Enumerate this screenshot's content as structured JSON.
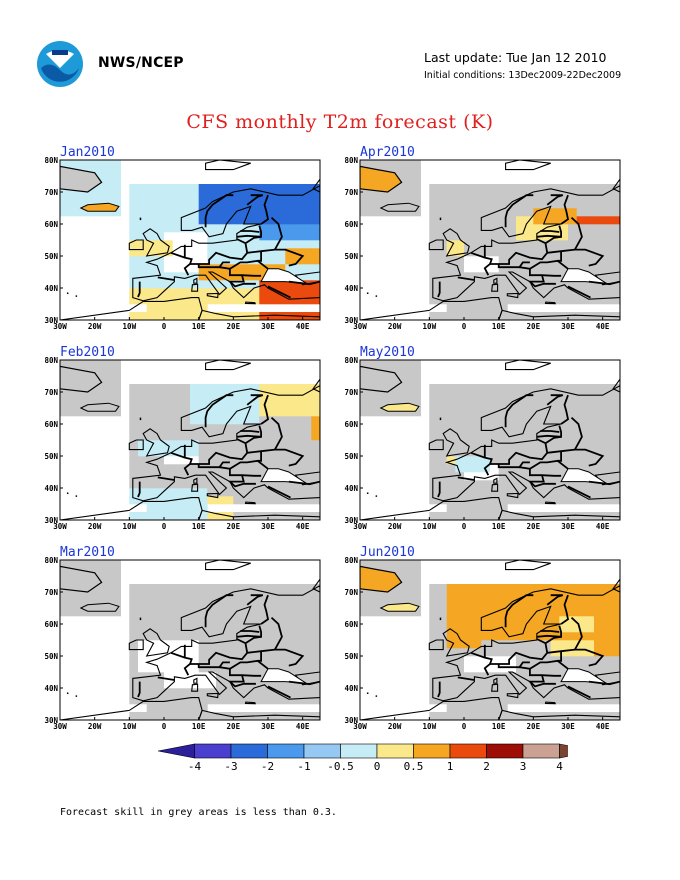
{
  "header": {
    "org": "NWS/NCEP",
    "last_update": "Last update: Tue Jan 12 2010",
    "initial_conditions": "Initial conditions: 13Dec2009-22Dec2009",
    "logo": "noaa-logo"
  },
  "title": "CFS monthly T2m forecast (K)",
  "map": {
    "region": "Europe",
    "lon_range": [
      -30,
      45
    ],
    "lat_range": [
      30,
      80
    ],
    "lon_ticks": [
      "30W",
      "20W",
      "10W",
      "0",
      "10E",
      "20E",
      "30E",
      "40E"
    ],
    "lat_ticks": [
      "30N",
      "40N",
      "50N",
      "60N",
      "70N",
      "80N"
    ]
  },
  "panels": [
    {
      "month": "Jan2010",
      "dominant": "light-blue",
      "anomalies": [
        {
          "region": "Scandinavia",
          "anomaly": -2
        },
        {
          "region": "Western Russia",
          "anomaly": -1
        },
        {
          "region": "Central Europe",
          "anomaly": -0.5
        },
        {
          "region": "Turkey",
          "anomaly": 1
        },
        {
          "region": "Mediterranean",
          "anomaly": 0.5
        }
      ]
    },
    {
      "month": "Feb2010",
      "dominant": "grey",
      "anomalies": [
        {
          "region": "Scandinavia",
          "anomaly": 0.5
        },
        {
          "region": "North Sea",
          "anomaly": -0.5
        },
        {
          "region": "Western Russia",
          "anomaly": 0.5
        }
      ]
    },
    {
      "month": "Mar2010",
      "dominant": "grey",
      "anomalies": []
    },
    {
      "month": "Apr2010",
      "dominant": "grey",
      "anomalies": [
        {
          "region": "Western Russia",
          "anomaly": 1
        },
        {
          "region": "Baltic",
          "anomaly": 0.5
        }
      ]
    },
    {
      "month": "May2010",
      "dominant": "grey",
      "anomalies": [
        {
          "region": "France",
          "anomaly": -0.5
        }
      ]
    },
    {
      "month": "Jun2010",
      "dominant": "orange",
      "anomalies": [
        {
          "region": "Scandinavia",
          "anomaly": 1
        },
        {
          "region": "Western Russia",
          "anomaly": 0.5
        }
      ]
    }
  ],
  "colorbar": {
    "labels": [
      "-4",
      "-3",
      "-2",
      "-1",
      "-0.5",
      "0",
      "0.5",
      "1",
      "2",
      "3",
      "4"
    ],
    "colors": [
      "#2d1e9c",
      "#4b3fcf",
      "#2a6bd9",
      "#4b99ec",
      "#95c8f2",
      "#c6ecf5",
      "#fbe88b",
      "#f5a623",
      "#ea4a0d",
      "#9c0e06",
      "#caa192",
      "#7a4433"
    ]
  },
  "footnote": "Forecast skill in grey areas is less than 0.3."
}
